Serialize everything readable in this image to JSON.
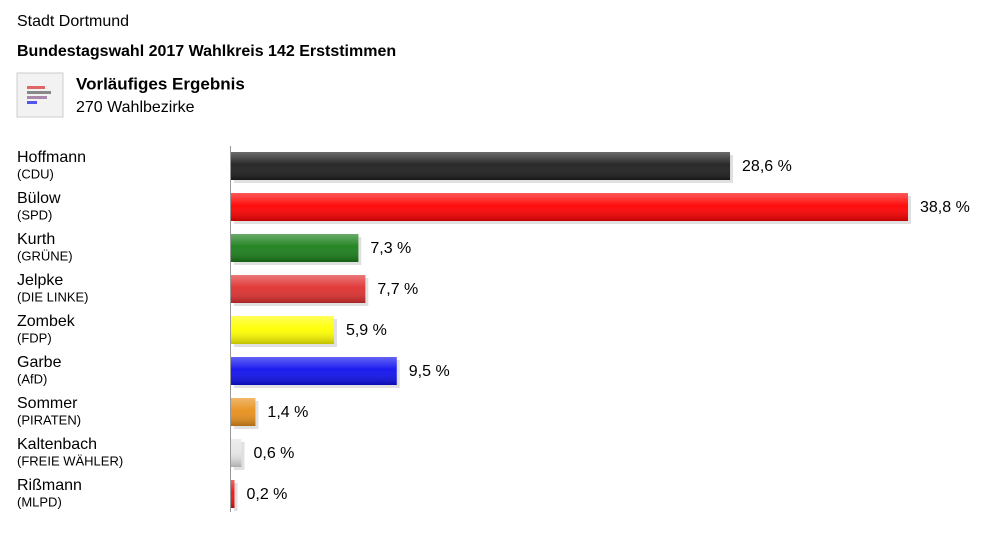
{
  "header": {
    "city": "Stadt Dortmund",
    "title": "Bundestagswahl 2017 Wahlkreis 142 Erststimmen",
    "status": "Vorläufiges Ergebnis",
    "districts": "270 Wahlbezirke"
  },
  "chart_data": {
    "type": "bar",
    "orientation": "horizontal",
    "categories": [
      "Hoffmann",
      "Bülow",
      "Kurth",
      "Jelpke",
      "Zombek",
      "Garbe",
      "Sommer",
      "Kaltenbach",
      "Rißmann"
    ],
    "parties": [
      "(CDU)",
      "(SPD)",
      "(GRÜNE)",
      "(DIE LINKE)",
      "(FDP)",
      "(AfD)",
      "(PIRATEN)",
      "(FREIE WÄHLER)",
      "(MLPD)"
    ],
    "values": [
      28.6,
      38.8,
      7.3,
      7.7,
      5.9,
      9.5,
      1.4,
      0.6,
      0.2
    ],
    "value_labels": [
      "28,6 %",
      "38,8 %",
      "7,3 %",
      "7,7 %",
      "5,9 %",
      "9,5 %",
      "1,4 %",
      "0,6 %",
      "0,2 %"
    ],
    "colors": [
      "#1e1e1e",
      "#ff0000",
      "#1a7f1a",
      "#e03030",
      "#ffff00",
      "#1010ee",
      "#e8901c",
      "#e4e4e4",
      "#ee1111"
    ]
  }
}
